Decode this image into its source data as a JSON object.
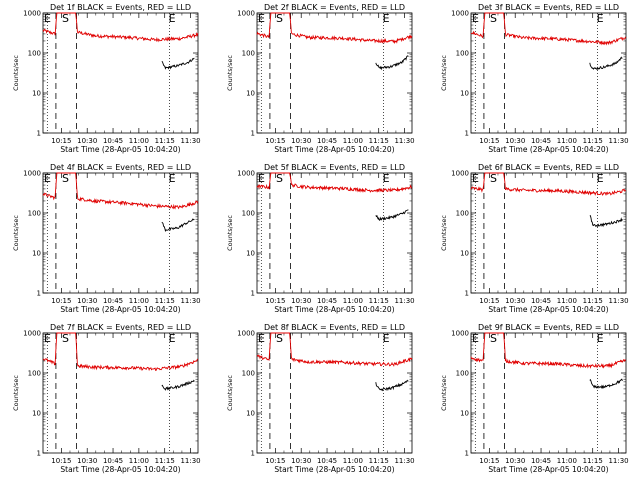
{
  "chart_data": [
    {
      "type": "line",
      "title": "Det 1f BLACK = Events, RED = LLD",
      "xlabel": "Start Time (28-Apr-05 10:04:20)",
      "ylabel": "Counts/sec",
      "y_scale": "log",
      "ylim": [
        1,
        1000
      ],
      "y_ticks": [
        "1",
        "10",
        "100",
        "1000"
      ],
      "x_ticks": [
        "10:15",
        "10:30",
        "10:45",
        "11:00",
        "11:15",
        "11:30"
      ],
      "xlim_minutes_after_start": [
        0,
        90
      ],
      "markers": {
        "E_left": "E",
        "S": "S",
        "E_right": "E"
      },
      "series": [
        {
          "color": "#e00000",
          "values": [
            {
              "x": 0,
              "y": 370
            },
            {
              "x": 7,
              "y": 300
            },
            {
              "x": 8,
              "y": 1000
            },
            {
              "x": 19,
              "y": 1000
            },
            {
              "x": 20,
              "y": 330
            },
            {
              "x": 30,
              "y": 270
            },
            {
              "x": 50,
              "y": 245
            },
            {
              "x": 65,
              "y": 215
            },
            {
              "x": 80,
              "y": 230
            },
            {
              "x": 90,
              "y": 290
            }
          ]
        },
        {
          "color": "#000000",
          "values": [
            {
              "x": 69,
              "y": 60
            },
            {
              "x": 71,
              "y": 42
            },
            {
              "x": 78,
              "y": 48
            },
            {
              "x": 84,
              "y": 58
            },
            {
              "x": 88,
              "y": 74
            }
          ]
        }
      ]
    },
    {
      "type": "line",
      "title": "Det 2f BLACK = Events, RED = LLD",
      "xlabel": "Start Time (28-Apr-05 10:04:20)",
      "ylabel": "Counts/sec",
      "y_scale": "log",
      "ylim": [
        1,
        1000
      ],
      "y_ticks": [
        "1",
        "10",
        "100",
        "1000"
      ],
      "x_ticks": [
        "10:15",
        "10:30",
        "10:45",
        "11:00",
        "11:15",
        "11:30"
      ],
      "xlim_minutes_after_start": [
        0,
        90
      ],
      "markers": {
        "E_left": "E",
        "S": "S",
        "E_right": "E"
      },
      "series": [
        {
          "color": "#e00000",
          "values": [
            {
              "x": 0,
              "y": 310
            },
            {
              "x": 7,
              "y": 250
            },
            {
              "x": 8,
              "y": 1000
            },
            {
              "x": 19,
              "y": 1000
            },
            {
              "x": 20,
              "y": 300
            },
            {
              "x": 30,
              "y": 245
            },
            {
              "x": 50,
              "y": 235
            },
            {
              "x": 65,
              "y": 205
            },
            {
              "x": 80,
              "y": 195
            },
            {
              "x": 90,
              "y": 270
            }
          ]
        },
        {
          "color": "#000000",
          "values": [
            {
              "x": 69,
              "y": 58
            },
            {
              "x": 71,
              "y": 42
            },
            {
              "x": 78,
              "y": 46
            },
            {
              "x": 84,
              "y": 58
            },
            {
              "x": 88,
              "y": 85
            }
          ]
        }
      ]
    },
    {
      "type": "line",
      "title": "Det 3f BLACK = Events, RED = LLD",
      "xlabel": "Start Time (28-Apr-05 10:04:20)",
      "ylabel": "Counts/sec",
      "y_scale": "log",
      "ylim": [
        1,
        1000
      ],
      "y_ticks": [
        "1",
        "10",
        "100",
        "1000"
      ],
      "x_ticks": [
        "10:15",
        "10:30",
        "10:45",
        "11:00",
        "11:15",
        "11:30"
      ],
      "xlim_minutes_after_start": [
        0,
        90
      ],
      "markers": {
        "E_left": "E",
        "S": "S",
        "E_right": "E"
      },
      "series": [
        {
          "color": "#e00000",
          "values": [
            {
              "x": 0,
              "y": 330
            },
            {
              "x": 7,
              "y": 260
            },
            {
              "x": 8,
              "y": 1000
            },
            {
              "x": 19,
              "y": 1000
            },
            {
              "x": 20,
              "y": 290
            },
            {
              "x": 30,
              "y": 240
            },
            {
              "x": 50,
              "y": 225
            },
            {
              "x": 65,
              "y": 200
            },
            {
              "x": 80,
              "y": 180
            },
            {
              "x": 90,
              "y": 250
            }
          ]
        },
        {
          "color": "#000000",
          "values": [
            {
              "x": 69,
              "y": 55
            },
            {
              "x": 71,
              "y": 40
            },
            {
              "x": 78,
              "y": 45
            },
            {
              "x": 84,
              "y": 55
            },
            {
              "x": 88,
              "y": 80
            }
          ]
        }
      ]
    },
    {
      "type": "line",
      "title": "Det 4f BLACK = Events, RED = LLD",
      "xlabel": "Start Time (28-Apr-05 10:04:20)",
      "ylabel": "Counts/sec",
      "y_scale": "log",
      "ylim": [
        1,
        1000
      ],
      "y_ticks": [
        "1",
        "10",
        "100",
        "1000"
      ],
      "x_ticks": [
        "10:15",
        "10:30",
        "10:45",
        "11:00",
        "11:15",
        "11:30"
      ],
      "xlim_minutes_after_start": [
        0,
        90
      ],
      "markers": {
        "E_left": "E",
        "S": "S",
        "E_right": "E"
      },
      "series": [
        {
          "color": "#e00000",
          "values": [
            {
              "x": 0,
              "y": 300
            },
            {
              "x": 7,
              "y": 240
            },
            {
              "x": 8,
              "y": 1000
            },
            {
              "x": 19,
              "y": 1000
            },
            {
              "x": 20,
              "y": 230
            },
            {
              "x": 30,
              "y": 200
            },
            {
              "x": 50,
              "y": 175
            },
            {
              "x": 65,
              "y": 150
            },
            {
              "x": 80,
              "y": 140
            },
            {
              "x": 90,
              "y": 190
            }
          ]
        },
        {
          "color": "#000000",
          "values": [
            {
              "x": 69,
              "y": 62
            },
            {
              "x": 71,
              "y": 38
            },
            {
              "x": 78,
              "y": 42
            },
            {
              "x": 84,
              "y": 58
            },
            {
              "x": 88,
              "y": 70
            }
          ]
        }
      ]
    },
    {
      "type": "line",
      "title": "Det 5f BLACK = Events, RED = LLD",
      "xlabel": "Start Time (28-Apr-05 10:04:20)",
      "ylabel": "Counts/sec",
      "y_scale": "log",
      "ylim": [
        1,
        1000
      ],
      "y_ticks": [
        "1",
        "10",
        "100",
        "1000"
      ],
      "x_ticks": [
        "10:15",
        "10:30",
        "10:45",
        "11:00",
        "11:15",
        "11:30"
      ],
      "xlim_minutes_after_start": [
        0,
        90
      ],
      "markers": {
        "E_left": "E",
        "S": "S",
        "E_right": "E"
      },
      "series": [
        {
          "color": "#e00000",
          "values": [
            {
              "x": 0,
              "y": 470
            },
            {
              "x": 7,
              "y": 440
            },
            {
              "x": 8,
              "y": 1000
            },
            {
              "x": 19,
              "y": 1000
            },
            {
              "x": 20,
              "y": 500
            },
            {
              "x": 30,
              "y": 440
            },
            {
              "x": 50,
              "y": 410
            },
            {
              "x": 65,
              "y": 370
            },
            {
              "x": 80,
              "y": 370
            },
            {
              "x": 90,
              "y": 450
            }
          ]
        },
        {
          "color": "#000000",
          "values": [
            {
              "x": 69,
              "y": 85
            },
            {
              "x": 71,
              "y": 70
            },
            {
              "x": 78,
              "y": 78
            },
            {
              "x": 84,
              "y": 95
            },
            {
              "x": 88,
              "y": 120
            }
          ]
        }
      ]
    },
    {
      "type": "line",
      "title": "Det 6f BLACK = Events, RED = LLD",
      "xlabel": "Start Time (28-Apr-05 10:04:20)",
      "ylabel": "Counts/sec",
      "y_scale": "log",
      "ylim": [
        1,
        1000
      ],
      "y_ticks": [
        "1",
        "10",
        "100",
        "1000"
      ],
      "x_ticks": [
        "10:15",
        "10:30",
        "10:45",
        "11:00",
        "11:15",
        "11:30"
      ],
      "xlim_minutes_after_start": [
        0,
        90
      ],
      "markers": {
        "E_left": "E",
        "S": "S",
        "E_right": "E"
      },
      "series": [
        {
          "color": "#e00000",
          "values": [
            {
              "x": 0,
              "y": 420
            },
            {
              "x": 7,
              "y": 380
            },
            {
              "x": 8,
              "y": 1000
            },
            {
              "x": 19,
              "y": 1000
            },
            {
              "x": 20,
              "y": 400
            },
            {
              "x": 30,
              "y": 370
            },
            {
              "x": 50,
              "y": 360
            },
            {
              "x": 65,
              "y": 330
            },
            {
              "x": 80,
              "y": 300
            },
            {
              "x": 90,
              "y": 370
            }
          ]
        },
        {
          "color": "#000000",
          "values": [
            {
              "x": 69,
              "y": 90
            },
            {
              "x": 71,
              "y": 48
            },
            {
              "x": 78,
              "y": 52
            },
            {
              "x": 84,
              "y": 60
            },
            {
              "x": 88,
              "y": 70
            }
          ]
        }
      ]
    },
    {
      "type": "line",
      "title": "Det 7f BLACK = Events, RED = LLD",
      "xlabel": "Start Time (28-Apr-05 10:04:20)",
      "ylabel": "Counts/sec",
      "y_scale": "log",
      "ylim": [
        1,
        1000
      ],
      "y_ticks": [
        "1",
        "10",
        "100",
        "1000"
      ],
      "x_ticks": [
        "10:15",
        "10:30",
        "10:45",
        "11:00",
        "11:15",
        "11:30"
      ],
      "xlim_minutes_after_start": [
        0,
        90
      ],
      "markers": {
        "E_left": "E",
        "S": "S",
        "E_right": "E"
      },
      "series": [
        {
          "color": "#e00000",
          "values": [
            {
              "x": 0,
              "y": 230
            },
            {
              "x": 7,
              "y": 170
            },
            {
              "x": 8,
              "y": 1000
            },
            {
              "x": 19,
              "y": 1000
            },
            {
              "x": 20,
              "y": 150
            },
            {
              "x": 30,
              "y": 140
            },
            {
              "x": 50,
              "y": 135
            },
            {
              "x": 65,
              "y": 125
            },
            {
              "x": 80,
              "y": 145
            },
            {
              "x": 90,
              "y": 210
            }
          ]
        },
        {
          "color": "#000000",
          "values": [
            {
              "x": 69,
              "y": 50
            },
            {
              "x": 71,
              "y": 40
            },
            {
              "x": 78,
              "y": 45
            },
            {
              "x": 84,
              "y": 55
            },
            {
              "x": 88,
              "y": 65
            }
          ]
        }
      ]
    },
    {
      "type": "line",
      "title": "Det 8f BLACK = Events, RED = LLD",
      "xlabel": "Start Time (28-Apr-05 10:04:20)",
      "ylabel": "Counts/sec",
      "y_scale": "log",
      "ylim": [
        1,
        1000
      ],
      "y_ticks": [
        "1",
        "10",
        "100",
        "1000"
      ],
      "x_ticks": [
        "10:15",
        "10:30",
        "10:45",
        "11:00",
        "11:15",
        "11:30"
      ],
      "xlim_minutes_after_start": [
        0,
        90
      ],
      "markers": {
        "E_left": "E",
        "S": "S",
        "E_right": "E"
      },
      "series": [
        {
          "color": "#e00000",
          "values": [
            {
              "x": 0,
              "y": 270
            },
            {
              "x": 7,
              "y": 210
            },
            {
              "x": 8,
              "y": 1000
            },
            {
              "x": 19,
              "y": 1000
            },
            {
              "x": 20,
              "y": 220
            },
            {
              "x": 30,
              "y": 190
            },
            {
              "x": 50,
              "y": 185
            },
            {
              "x": 65,
              "y": 170
            },
            {
              "x": 80,
              "y": 165
            },
            {
              "x": 90,
              "y": 230
            }
          ]
        },
        {
          "color": "#000000",
          "values": [
            {
              "x": 69,
              "y": 55
            },
            {
              "x": 71,
              "y": 38
            },
            {
              "x": 78,
              "y": 42
            },
            {
              "x": 84,
              "y": 52
            },
            {
              "x": 88,
              "y": 65
            }
          ]
        }
      ]
    },
    {
      "type": "line",
      "title": "Det 9f BLACK = Events, RED = LLD",
      "xlabel": "Start Time (28-Apr-05 10:04:20)",
      "ylabel": "Counts/sec",
      "y_scale": "log",
      "ylim": [
        1,
        1000
      ],
      "y_ticks": [
        "1",
        "10",
        "100",
        "1000"
      ],
      "x_ticks": [
        "10:15",
        "10:30",
        "10:45",
        "11:00",
        "11:15",
        "11:30"
      ],
      "xlim_minutes_after_start": [
        0,
        90
      ],
      "markers": {
        "E_left": "E",
        "S": "S",
        "E_right": "E"
      },
      "series": [
        {
          "color": "#e00000",
          "values": [
            {
              "x": 0,
              "y": 240
            },
            {
              "x": 7,
              "y": 200
            },
            {
              "x": 8,
              "y": 1000
            },
            {
              "x": 19,
              "y": 1000
            },
            {
              "x": 20,
              "y": 200
            },
            {
              "x": 30,
              "y": 175
            },
            {
              "x": 50,
              "y": 170
            },
            {
              "x": 65,
              "y": 150
            },
            {
              "x": 80,
              "y": 150
            },
            {
              "x": 90,
              "y": 210
            }
          ]
        },
        {
          "color": "#000000",
          "values": [
            {
              "x": 69,
              "y": 70
            },
            {
              "x": 71,
              "y": 45
            },
            {
              "x": 78,
              "y": 45
            },
            {
              "x": 84,
              "y": 55
            },
            {
              "x": 88,
              "y": 68
            }
          ]
        }
      ]
    }
  ]
}
